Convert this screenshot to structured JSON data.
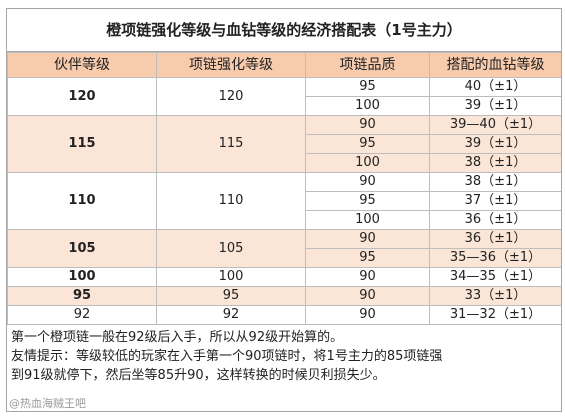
{
  "title": "橙项链强化等级与血钻等级的经济搭配表（1号主力）",
  "headers": [
    "伙伴等级",
    "项链强化等级",
    "项链品质",
    "搭配的血钻等级"
  ],
  "groups": [
    {
      "level": "120",
      "enhance": "120",
      "bold": true,
      "rows": [
        {
          "quality": "95",
          "gem": "40（±1）"
        },
        {
          "quality": "100",
          "gem": "39（±1）"
        }
      ]
    },
    {
      "level": "115",
      "enhance": "115",
      "bold": true,
      "rows": [
        {
          "quality": "90",
          "gem": "39—40（±1）"
        },
        {
          "quality": "95",
          "gem": "39（±1）"
        },
        {
          "quality": "100",
          "gem": "38（±1）"
        }
      ]
    },
    {
      "level": "110",
      "enhance": "110",
      "bold": true,
      "rows": [
        {
          "quality": "90",
          "gem": "38（±1）"
        },
        {
          "quality": "95",
          "gem": "37（±1）"
        },
        {
          "quality": "100",
          "gem": "36（±1）"
        }
      ]
    },
    {
      "level": "105",
      "enhance": "105",
      "bold": true,
      "rows": [
        {
          "quality": "90",
          "gem": "36（±1）"
        },
        {
          "quality": "95",
          "gem": "35—36（±1）"
        }
      ]
    },
    {
      "level": "100",
      "enhance": "100",
      "bold": true,
      "rows": [
        {
          "quality": "90",
          "gem": "34—35（±1）"
        }
      ]
    },
    {
      "level": "95",
      "enhance": "95",
      "bold": true,
      "rows": [
        {
          "quality": "90",
          "gem": "33（±1）"
        }
      ]
    },
    {
      "level": "92",
      "enhance": "92",
      "bold": false,
      "rows": [
        {
          "quality": "90",
          "gem": "31—32（±1）"
        }
      ]
    }
  ],
  "notes": [
    "第一个橙项链一般在92级后入手，所以从92级开始算的。",
    "友情提示：等级较低的玩家在入手第一个90项链时，将1号主力的85项链强",
    "到91级就停下，然后坐等85升90，这样转换的时候贝利损失少。"
  ],
  "watermark": "@热血海贼王吧",
  "colors": {
    "header_bg": "#f8cbad",
    "band_b": "#fbe5d6",
    "band_a": "#ffffff",
    "border": "#bdbdbd"
  }
}
